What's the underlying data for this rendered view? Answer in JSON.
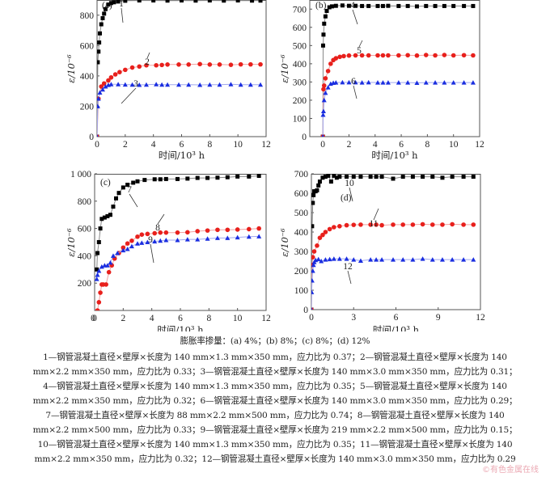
{
  "chart_data": [
    {
      "type": "scatter",
      "panel": "(a)",
      "xlabel": "时间/10³ h",
      "ylabel": "ε/10⁻⁶",
      "xlim": [
        0,
        12
      ],
      "ylim": [
        0,
        900
      ],
      "xticks": [
        "0",
        "2",
        "4",
        "6",
        "8",
        "10",
        "12"
      ],
      "yticks": [
        "0",
        "200",
        "400",
        "600",
        "800"
      ],
      "series": [
        {
          "name": "1",
          "color": "#000000",
          "marker": "square",
          "x": [
            0,
            0.05,
            0.1,
            0.15,
            0.2,
            0.3,
            0.4,
            0.5,
            0.6,
            0.8,
            1.0,
            1.2,
            1.5,
            2,
            3,
            4,
            5,
            6,
            7,
            8,
            9,
            10,
            11,
            11.6
          ],
          "y": [
            0,
            490,
            560,
            620,
            680,
            740,
            780,
            810,
            840,
            870,
            880,
            885,
            890,
            895,
            897,
            897,
            896,
            897,
            896,
            897,
            896,
            897,
            896,
            896
          ]
        },
        {
          "name": "2",
          "color": "#e8201c",
          "marker": "circle",
          "x": [
            0,
            0.1,
            0.3,
            0.5,
            0.8,
            1.0,
            1.3,
            1.6,
            2.0,
            2.5,
            3.0,
            3.5,
            4.2,
            4.6,
            5.0,
            5.8,
            6.5,
            7.3,
            8.0,
            8.7,
            9.5,
            10.2,
            10.9,
            11.6
          ],
          "y": [
            0,
            250,
            330,
            350,
            370,
            390,
            410,
            425,
            440,
            455,
            462,
            470,
            470,
            472,
            475,
            475,
            475,
            478,
            475,
            475,
            473,
            476,
            476,
            476
          ]
        },
        {
          "name": "3",
          "color": "#1a2ee0",
          "marker": "triangle",
          "x": [
            0,
            0.05,
            0.1,
            0.2,
            0.4,
            0.6,
            0.8,
            1.0,
            1.5,
            2.0,
            2.5,
            3.0,
            3.5,
            4.2,
            4.6,
            5.0,
            5.8,
            6.5,
            7.3,
            8.0,
            8.7,
            9.5,
            10.2,
            10.9,
            11.6
          ],
          "y": [
            0,
            200,
            250,
            290,
            310,
            330,
            340,
            345,
            345,
            343,
            342,
            341,
            342,
            345,
            342,
            342,
            342,
            342,
            341,
            342,
            342,
            345,
            342,
            342,
            342
          ]
        }
      ],
      "annotations": [
        "1",
        "2",
        "3"
      ]
    },
    {
      "type": "scatter",
      "panel": "(b)",
      "xlabel": "时间/10³ h",
      "ylabel": "ε/10⁻⁶",
      "xlim": [
        -1,
        12
      ],
      "ylim": [
        0,
        750
      ],
      "xticks": [
        "0",
        "2",
        "4",
        "6",
        "8",
        "10",
        "12"
      ],
      "yticks": [
        "0",
        "100",
        "200",
        "300",
        "400",
        "500",
        "600",
        "700"
      ],
      "series": [
        {
          "name": "4",
          "color": "#000000",
          "marker": "square",
          "x": [
            0,
            0.02,
            0.05,
            0.1,
            0.2,
            0.3,
            0.5,
            0.7,
            1.0,
            1.5,
            2.0,
            2.5,
            3.0,
            3.5,
            4.2,
            4.6,
            5.0,
            5.8,
            6.5,
            7.2,
            7.9,
            8.6,
            9.3,
            10.0,
            10.8,
            11.5
          ],
          "y": [
            0,
            500,
            560,
            620,
            660,
            690,
            710,
            715,
            718,
            720,
            718,
            718,
            717,
            717,
            717,
            717,
            718,
            717,
            717,
            715,
            717,
            717,
            717,
            717,
            717,
            717
          ]
        },
        {
          "name": "5",
          "color": "#e8201c",
          "marker": "circle",
          "x": [
            0,
            0.05,
            0.1,
            0.2,
            0.4,
            0.6,
            0.8,
            1.0,
            1.3,
            1.6,
            2.0,
            2.5,
            3.0,
            3.5,
            4.2,
            4.6,
            5.0,
            5.8,
            6.5,
            7.2,
            7.9,
            8.6,
            9.3,
            10.0,
            10.8,
            11.5
          ],
          "y": [
            0,
            260,
            280,
            320,
            360,
            400,
            420,
            430,
            438,
            442,
            445,
            446,
            446,
            446,
            446,
            446,
            446,
            446,
            447,
            445,
            448,
            446,
            448,
            446,
            447,
            446
          ]
        },
        {
          "name": "6",
          "color": "#1a2ee0",
          "marker": "triangle",
          "x": [
            0,
            0.02,
            0.05,
            0.1,
            0.2,
            0.4,
            0.6,
            0.8,
            1.0,
            1.5,
            2.0,
            2.5,
            3.0,
            3.5,
            4.2,
            4.6,
            5.0,
            5.8,
            6.5,
            7.2,
            7.9,
            8.6,
            9.3,
            10.0,
            10.8,
            11.5
          ],
          "y": [
            0,
            120,
            140,
            200,
            240,
            270,
            290,
            295,
            297,
            298,
            298,
            298,
            297,
            298,
            297,
            297,
            297,
            297,
            297,
            295,
            297,
            297,
            297,
            297,
            297,
            297
          ]
        }
      ],
      "annotations": [
        "4",
        "5",
        "6"
      ]
    },
    {
      "type": "scatter",
      "panel": "(c)",
      "xlabel": "时间/10³ h",
      "ylabel": "ε/10⁻⁶",
      "xlim": [
        0,
        12
      ],
      "ylim": [
        0,
        1000
      ],
      "xticks": [
        "0",
        "2",
        "4",
        "6",
        "8",
        "10",
        "12"
      ],
      "yticks": [
        "200",
        "400",
        "600",
        "800",
        "1 000"
      ],
      "series": [
        {
          "name": "7",
          "color": "#000000",
          "marker": "square",
          "x": [
            0.15,
            0.2,
            0.3,
            0.4,
            0.5,
            0.7,
            0.9,
            1.1,
            1.3,
            1.5,
            1.7,
            2.0,
            2.3,
            2.7,
            3.0,
            3.5,
            4.2,
            4.6,
            5.0,
            5.8,
            6.5,
            7.2,
            7.9,
            8.6,
            9.3,
            10.0,
            10.8,
            11.5
          ],
          "y": [
            300,
            420,
            500,
            600,
            670,
            680,
            690,
            700,
            760,
            820,
            860,
            900,
            920,
            935,
            945,
            955,
            960,
            960,
            962,
            962,
            965,
            970,
            970,
            972,
            975,
            980,
            980,
            985
          ]
        },
        {
          "name": "8",
          "color": "#e8201c",
          "marker": "circle",
          "x": [
            0.2,
            0.3,
            0.4,
            0.5,
            0.6,
            0.8,
            1.0,
            1.2,
            1.4,
            1.7,
            2.0,
            2.3,
            2.6,
            3.0,
            3.3,
            3.7,
            4.2,
            4.6,
            5.0,
            5.8,
            6.5,
            7.2,
            7.9,
            8.6,
            9.3,
            10.0,
            10.8,
            11.5
          ],
          "y": [
            0,
            60,
            130,
            190,
            190,
            190,
            280,
            330,
            380,
            420,
            460,
            490,
            510,
            540,
            555,
            560,
            565,
            570,
            570,
            570,
            572,
            580,
            585,
            590,
            590,
            592,
            595,
            600
          ]
        },
        {
          "name": "9",
          "color": "#1a2ee0",
          "marker": "triangle",
          "x": [
            0.15,
            0.2,
            0.3,
            0.5,
            0.7,
            0.9,
            1.1,
            1.3,
            1.6,
            2.0,
            2.3,
            2.6,
            3.0,
            3.3,
            3.7,
            4.2,
            4.6,
            5.0,
            5.8,
            6.5,
            7.2,
            7.9,
            8.6,
            9.3,
            10.0,
            10.8,
            11.5
          ],
          "y": [
            230,
            260,
            290,
            320,
            330,
            330,
            350,
            400,
            420,
            440,
            450,
            470,
            490,
            495,
            500,
            505,
            510,
            515,
            515,
            520,
            520,
            525,
            530,
            530,
            535,
            540,
            542
          ]
        }
      ],
      "annotations": [
        "7",
        "8",
        "9"
      ]
    },
    {
      "type": "scatter",
      "panel": "(d)",
      "xlabel": "时间/10³ h",
      "ylabel": "ε/10⁻⁶",
      "xlim": [
        0,
        12
      ],
      "ylim": [
        0,
        700
      ],
      "xticks": [
        "0",
        "3",
        "6",
        "9",
        "12"
      ],
      "yticks": [
        "0",
        "100",
        "200",
        "300",
        "400",
        "500",
        "600",
        "700"
      ],
      "series": [
        {
          "name": "10",
          "color": "#000000",
          "marker": "square",
          "x": [
            0,
            0.05,
            0.1,
            0.15,
            0.2,
            0.3,
            0.4,
            0.5,
            0.6,
            0.8,
            1.0,
            1.2,
            1.4,
            1.6,
            1.8,
            2.0,
            2.5,
            3.0,
            3.5,
            4.2,
            4.6,
            5.0,
            5.8,
            6.5,
            7.2,
            7.9,
            8.6,
            9.3,
            10.0,
            10.8,
            11.5
          ],
          "y": [
            0,
            430,
            550,
            590,
            610,
            610,
            615,
            640,
            660,
            680,
            685,
            690,
            660,
            690,
            680,
            685,
            685,
            685,
            685,
            685,
            685,
            685,
            675,
            685,
            685,
            685,
            685,
            680,
            685,
            685,
            685
          ]
        },
        {
          "name": "11",
          "color": "#e8201c",
          "marker": "circle",
          "x": [
            0,
            0.05,
            0.1,
            0.2,
            0.4,
            0.6,
            0.8,
            1.0,
            1.3,
            1.6,
            2.0,
            2.5,
            3.0,
            3.5,
            4.2,
            4.6,
            5.0,
            5.8,
            6.5,
            7.2,
            7.9,
            8.6,
            9.3,
            10.0,
            10.8,
            11.5
          ],
          "y": [
            0,
            230,
            270,
            300,
            330,
            370,
            385,
            400,
            415,
            425,
            430,
            435,
            437,
            438,
            438,
            438,
            435,
            438,
            438,
            438,
            440,
            438,
            438,
            440,
            438,
            438
          ]
        },
        {
          "name": "12",
          "color": "#1a2ee0",
          "marker": "triangle",
          "x": [
            0,
            0.02,
            0.05,
            0.1,
            0.15,
            0.2,
            0.3,
            0.5,
            0.7,
            1.0,
            1.3,
            1.6,
            2.0,
            2.5,
            3.0,
            3.5,
            4.2,
            4.6,
            5.0,
            5.8,
            6.5,
            7.2,
            7.9,
            8.6,
            9.3,
            10.0,
            10.8,
            11.5
          ],
          "y": [
            0,
            90,
            150,
            200,
            230,
            245,
            255,
            260,
            250,
            258,
            260,
            262,
            262,
            262,
            258,
            252,
            258,
            258,
            258,
            258,
            258,
            258,
            262,
            258,
            258,
            258,
            258,
            258
          ]
        }
      ],
      "annotations": [
        "10",
        "11",
        "12"
      ]
    }
  ],
  "caption": {
    "title": "膨胀率掺量：(a) 4%；(b) 8%；(c) 8%；(d) 12%",
    "lines": [
      "1—钢管混凝土直径×壁厚×长度为 140 mm×1.3 mm×350 mm，应力比为 0.37；2—钢管混凝土直径×壁厚×长度为 140",
      "mm×2.2 mm×350 mm，应力比为 0.33；3—钢管混凝土直径×壁厚×长度为 140 mm×3.0 mm×350 mm，应力比为 0.31；",
      "4—钢管混凝土直径×壁厚×长度为 140 mm×1.3 mm×350 mm，应力比为 0.35；5—钢管混凝土直径×壁厚×长度为 140",
      "mm×2.2 mm×350 mm，应力比为 0.32；6—钢管混凝土直径×壁厚×长度为 140 mm×3.0 mm×350 mm，应力比为 0.29；",
      "7—钢管混凝土直径×壁厚×长度为 88 mm×2.2 mm×500 mm，应力比为 0.74；8—钢管混凝土直径×壁厚×长度为 140",
      "mm×2.2 mm×500 mm，应力比为 0.33；9—钢管混凝土直径×壁厚×长度为 219 mm×2.2 mm×500 mm，应力比为 0.15；",
      "10—钢管混凝土直径×壁厚×长度为 140 mm×1.3 mm×350 mm，应力比为 0.35；11—钢管混凝土直径×壁厚×长度为 140",
      "mm×2.2 mm×350 mm，应力比为 0.32；12—钢管混凝土直径×壁厚×长度为 140 mm×3.0 mm×350 mm，应力比为 0.29"
    ]
  },
  "watermark": "©有色金属在线"
}
